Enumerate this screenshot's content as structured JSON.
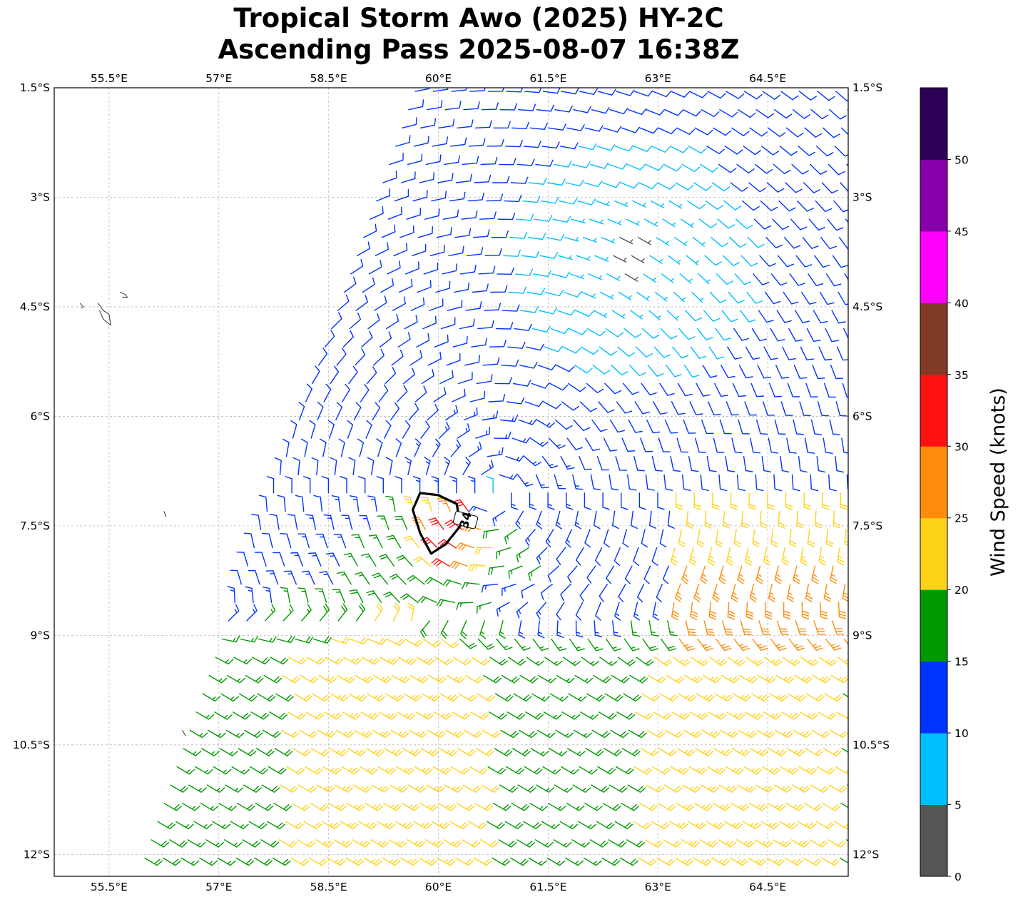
{
  "title": {
    "line1": "Tropical Storm Awo (2025) HY-2C",
    "line2": "Ascending Pass 2025-08-07 16:38Z"
  },
  "map": {
    "lon_range": [
      54.75,
      65.6
    ],
    "lat_range": [
      -12.3,
      -1.5
    ],
    "lon_ticks": [
      {
        "value": 55.5,
        "label": "55.5°E"
      },
      {
        "value": 57,
        "label": "57°E"
      },
      {
        "value": 58.5,
        "label": "58.5°E"
      },
      {
        "value": 60,
        "label": "60°E"
      },
      {
        "value": 61.5,
        "label": "61.5°E"
      },
      {
        "value": 63,
        "label": "63°E"
      },
      {
        "value": 64.5,
        "label": "64.5°E"
      }
    ],
    "lat_ticks": [
      {
        "value": -1.5,
        "label": "1.5°S"
      },
      {
        "value": -3,
        "label": "3°S"
      },
      {
        "value": -4.5,
        "label": "4.5°S"
      },
      {
        "value": -6,
        "label": "6°S"
      },
      {
        "value": -7.5,
        "label": "7.5°S"
      },
      {
        "value": -9,
        "label": "9°S"
      },
      {
        "value": -10.5,
        "label": "10.5°S"
      },
      {
        "value": -12,
        "label": "12°S"
      }
    ],
    "gridlines": true,
    "storm_center": {
      "lon": 60.75,
      "lat": -7.05
    },
    "swath": {
      "west_lon_at_bottom": 55.9,
      "west_lon_at_top": 59.7
    },
    "contour_34kt": {
      "label": "34",
      "points": [
        [
          59.75,
          -7.05
        ],
        [
          60.0,
          -7.08
        ],
        [
          60.25,
          -7.2
        ],
        [
          60.3,
          -7.5
        ],
        [
          60.1,
          -7.75
        ],
        [
          59.9,
          -7.88
        ],
        [
          59.75,
          -7.6
        ],
        [
          59.65,
          -7.28
        ]
      ]
    },
    "islands": [
      [
        [
          55.35,
          -4.45
        ],
        [
          55.42,
          -4.55
        ],
        [
          55.5,
          -4.6
        ],
        [
          55.52,
          -4.75
        ],
        [
          55.42,
          -4.67
        ],
        [
          55.37,
          -4.55
        ]
      ],
      [
        [
          55.65,
          -4.3
        ],
        [
          55.72,
          -4.33
        ],
        [
          55.75,
          -4.37
        ],
        [
          55.68,
          -4.37
        ]
      ],
      [
        [
          55.1,
          -4.45
        ],
        [
          55.15,
          -4.5
        ],
        [
          55.12,
          -4.52
        ]
      ],
      [
        [
          56.25,
          -7.3
        ],
        [
          56.28,
          -7.38
        ]
      ],
      [
        [
          56.5,
          -10.3
        ],
        [
          56.55,
          -10.38
        ]
      ]
    ]
  },
  "colorbar": {
    "label": "Wind Speed (knots)",
    "ticks": [
      "0",
      "5",
      "10",
      "15",
      "20",
      "25",
      "30",
      "35",
      "40",
      "45",
      "50"
    ],
    "bins": [
      {
        "min": 0,
        "max": 5,
        "color": "#555555"
      },
      {
        "min": 5,
        "max": 10,
        "color": "#00bfff"
      },
      {
        "min": 10,
        "max": 15,
        "color": "#0033ff"
      },
      {
        "min": 15,
        "max": 20,
        "color": "#009900"
      },
      {
        "min": 20,
        "max": 25,
        "color": "#ffd21a"
      },
      {
        "min": 25,
        "max": 30,
        "color": "#ff8c0a"
      },
      {
        "min": 30,
        "max": 35,
        "color": "#ff1010"
      },
      {
        "min": 35,
        "max": 40,
        "color": "#803a26"
      },
      {
        "min": 40,
        "max": 45,
        "color": "#ff00ff"
      },
      {
        "min": 45,
        "max": 50,
        "color": "#8800aa"
      },
      {
        "min": 50,
        "max": 55,
        "color": "#2b0055"
      }
    ]
  }
}
